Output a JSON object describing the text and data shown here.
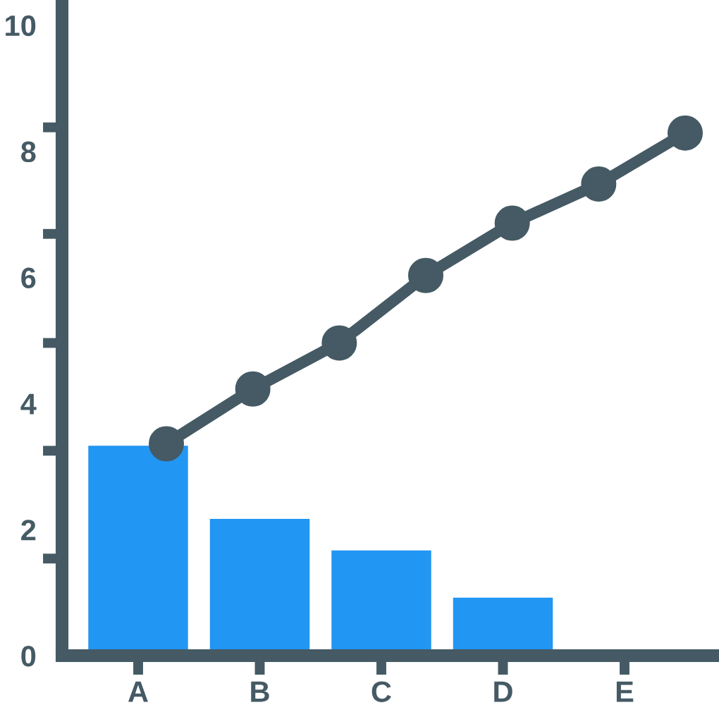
{
  "chart_data": [
    {
      "type": "bar",
      "categories": [
        "A",
        "B",
        "C",
        "D",
        "E"
      ],
      "color": "#2196f3",
      "values": [
        3.33,
        2.17,
        1.67,
        0.92,
        null
      ],
      "ylim": [
        0,
        10.4
      ],
      "yticks": [
        0,
        2,
        4,
        6,
        8,
        10,
        {
          "value": 1.54,
          "label": null
        },
        {
          "value": 3.25,
          "label": null
        },
        {
          "value": 4.96,
          "label": null
        },
        {
          "value": 6.69,
          "label": null
        },
        {
          "value": 8.38,
          "label": null
        }
      ]
    },
    {
      "type": "line",
      "categories": [
        null,
        null,
        null,
        null,
        null,
        null,
        null
      ],
      "color": "#455a64",
      "values": [
        3.36,
        4.23,
        4.96,
        6.03,
        6.86,
        7.48,
        8.29
      ],
      "ylim": [
        0,
        10.4
      ],
      "tick_labels": false,
      "marker": "circle",
      "line_style": "solid"
    }
  ]
}
